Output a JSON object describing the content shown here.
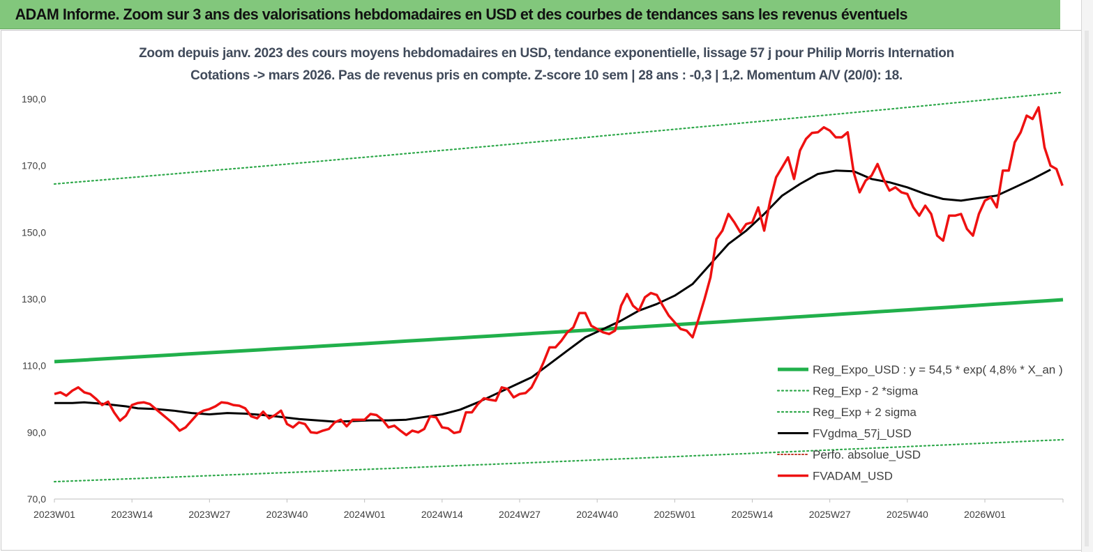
{
  "banner": {
    "title": "ADAM Informe. Zoom sur 3 ans des valorisations hebdomadaires en USD et des courbes de tendances sans les revenus éventuels"
  },
  "chart_data": {
    "type": "line",
    "title_line1": "Zoom depuis janv. 2023 des cours moyens hebdomadaires en USD, tendance exponentielle, lissage 57 j pour Philip Morris Internation",
    "title_line2": "Cotations -> mars 2026. Pas de revenus pris en compte. Z-score 10 sem | 28 ans : -0,3 | 1,2. Momentum A/V (20/0): 18.",
    "ylim": [
      70,
      190
    ],
    "yticks": [
      "70,0",
      "90,0",
      "110,0",
      "130,0",
      "150,0",
      "170,0",
      "190,0"
    ],
    "ytick_values": [
      70,
      90,
      110,
      130,
      150,
      170,
      190
    ],
    "xticks": [
      "2023W01",
      "2023W14",
      "2023W27",
      "2023W40",
      "2024W01",
      "2024W14",
      "2024W27",
      "2024W40",
      "2025W01",
      "2025W14",
      "2025W27",
      "2025W40",
      "2026W01"
    ],
    "xtick_index": [
      0,
      13,
      26,
      39,
      52,
      65,
      78,
      91,
      104,
      117,
      130,
      143,
      156
    ],
    "n_weeks": 170,
    "grid": "none",
    "legend_position": "bottom-right",
    "colors": {
      "green": "#21b04b",
      "green_dotted": "#2ea84a",
      "black": "#000000",
      "red": "#ee1111",
      "red_dotted": "#c0392b"
    },
    "legend": [
      {
        "label": "Reg_Expo_USD : y = 54,5 * exp( 4,8% *  X_an )",
        "style": "green-solid"
      },
      {
        "label": "Reg_Exp - 2 *sigma",
        "style": "green-dotted"
      },
      {
        "label": "Reg_Exp + 2 sigma",
        "style": "green-dotted"
      },
      {
        "label": "FVgdma_57j_USD",
        "style": "black-solid"
      },
      {
        "label": "Perfo. absolue_USD",
        "style": "red-dotted"
      },
      {
        "label": "FVADAM_USD",
        "style": "red-solid"
      }
    ],
    "series": [
      {
        "name": "Reg_Expo_USD : y = 54,5 * exp( 4,8% *  X_an )",
        "start": 111.2,
        "end": 129.8
      },
      {
        "name": "Reg_Exp - 2 *sigma",
        "start": 75.2,
        "end": 87.8
      },
      {
        "name": "Reg_Exp + 2 sigma",
        "start": 164.5,
        "end": 192.0
      },
      {
        "name": "FVgdma_57j_USD",
        "points": [
          [
            0,
            98.8
          ],
          [
            3,
            98.8
          ],
          [
            5,
            99.0
          ],
          [
            8,
            98.6
          ],
          [
            10,
            98.2
          ],
          [
            12,
            97.8
          ],
          [
            14,
            97.2
          ],
          [
            17,
            97.0
          ],
          [
            20,
            96.5
          ],
          [
            23,
            95.8
          ],
          [
            26,
            95.4
          ],
          [
            29,
            95.8
          ],
          [
            32,
            95.6
          ],
          [
            35,
            95.2
          ],
          [
            38,
            94.6
          ],
          [
            41,
            94.0
          ],
          [
            44,
            93.6
          ],
          [
            47,
            93.2
          ],
          [
            50,
            93.4
          ],
          [
            53,
            93.6
          ],
          [
            56,
            93.6
          ],
          [
            59,
            93.8
          ],
          [
            62,
            94.6
          ],
          [
            65,
            95.4
          ],
          [
            68,
            96.8
          ],
          [
            71,
            99.0
          ],
          [
            74,
            101.5
          ],
          [
            77,
            104.0
          ],
          [
            80,
            106.5
          ],
          [
            83,
            110.5
          ],
          [
            86,
            114.5
          ],
          [
            89,
            118.5
          ],
          [
            92,
            121.0
          ],
          [
            95,
            123.5
          ],
          [
            98,
            126.5
          ],
          [
            101,
            128.5
          ],
          [
            104,
            131.0
          ],
          [
            107,
            134.5
          ],
          [
            110,
            140.5
          ],
          [
            113,
            146.5
          ],
          [
            116,
            150.5
          ],
          [
            119,
            155.5
          ],
          [
            122,
            161.0
          ],
          [
            125,
            164.5
          ],
          [
            128,
            167.5
          ],
          [
            131,
            168.5
          ],
          [
            134,
            168.3
          ],
          [
            137,
            166.0
          ],
          [
            140,
            165.0
          ],
          [
            143,
            163.5
          ],
          [
            146,
            161.5
          ],
          [
            149,
            160.0
          ],
          [
            152,
            159.5
          ],
          [
            155,
            160.3
          ],
          [
            158,
            161.0
          ],
          [
            161,
            163.5
          ],
          [
            164,
            166.0
          ],
          [
            167,
            168.8
          ],
          [
            170,
            169.6
          ],
          [
            172,
            168.8
          ],
          [
            175,
            167.8
          ],
          [
            178,
            166.8
          ]
        ]
      },
      {
        "name": "FVADAM_USD",
        "points": [
          [
            0,
            101.5
          ],
          [
            1,
            102.0
          ],
          [
            2,
            101.0
          ],
          [
            3,
            102.5
          ],
          [
            4,
            103.5
          ],
          [
            5,
            102.0
          ],
          [
            6,
            101.5
          ],
          [
            7,
            100.0
          ],
          [
            8,
            98.2
          ],
          [
            9,
            99.2
          ],
          [
            10,
            96.0
          ],
          [
            11,
            93.5
          ],
          [
            12,
            95.0
          ],
          [
            13,
            98.2
          ],
          [
            14,
            98.8
          ],
          [
            15,
            99.0
          ],
          [
            16,
            98.5
          ],
          [
            17,
            97.0
          ],
          [
            18,
            95.5
          ],
          [
            19,
            94.0
          ],
          [
            20,
            92.5
          ],
          [
            21,
            90.5
          ],
          [
            22,
            91.5
          ],
          [
            23,
            93.5
          ],
          [
            24,
            95.5
          ],
          [
            25,
            96.5
          ],
          [
            26,
            97.0
          ],
          [
            27,
            97.8
          ],
          [
            28,
            99.0
          ],
          [
            29,
            98.8
          ],
          [
            30,
            98.2
          ],
          [
            31,
            98.0
          ],
          [
            32,
            97.2
          ],
          [
            33,
            94.8
          ],
          [
            34,
            94.2
          ],
          [
            35,
            96.2
          ],
          [
            36,
            94.2
          ],
          [
            37,
            95.2
          ],
          [
            38,
            96.5
          ],
          [
            39,
            92.5
          ],
          [
            40,
            91.5
          ],
          [
            41,
            93.0
          ],
          [
            42,
            92.5
          ],
          [
            43,
            90.0
          ],
          [
            44,
            89.8
          ],
          [
            45,
            90.5
          ],
          [
            46,
            91.0
          ],
          [
            47,
            93.0
          ],
          [
            48,
            93.8
          ],
          [
            49,
            91.8
          ],
          [
            50,
            93.8
          ],
          [
            51,
            93.8
          ],
          [
            52,
            93.8
          ],
          [
            53,
            95.5
          ],
          [
            54,
            95.2
          ],
          [
            55,
            93.8
          ],
          [
            56,
            91.5
          ],
          [
            57,
            92.0
          ],
          [
            58,
            90.5
          ],
          [
            59,
            89.2
          ],
          [
            60,
            90.5
          ],
          [
            61,
            90.0
          ],
          [
            62,
            91.0
          ],
          [
            63,
            94.8
          ],
          [
            64,
            94.5
          ],
          [
            65,
            91.5
          ],
          [
            66,
            91.2
          ],
          [
            67,
            89.8
          ],
          [
            68,
            90.2
          ],
          [
            69,
            96.0
          ],
          [
            70,
            96.0
          ],
          [
            71,
            98.5
          ],
          [
            72,
            100.2
          ],
          [
            73,
            99.8
          ],
          [
            74,
            99.5
          ],
          [
            75,
            103.5
          ],
          [
            76,
            103.0
          ],
          [
            77,
            100.5
          ],
          [
            78,
            101.5
          ],
          [
            79,
            101.8
          ],
          [
            80,
            103.5
          ],
          [
            81,
            107.0
          ],
          [
            82,
            111.0
          ],
          [
            83,
            115.5
          ],
          [
            84,
            115.5
          ],
          [
            85,
            117.5
          ],
          [
            86,
            120.0
          ],
          [
            87,
            121.5
          ],
          [
            88,
            125.8
          ],
          [
            89,
            125.8
          ],
          [
            90,
            122.0
          ],
          [
            91,
            121.0
          ],
          [
            92,
            120.0
          ],
          [
            93,
            119.5
          ],
          [
            94,
            120.5
          ],
          [
            95,
            128.0
          ],
          [
            96,
            131.5
          ],
          [
            97,
            128.0
          ],
          [
            98,
            126.5
          ],
          [
            99,
            130.5
          ],
          [
            100,
            131.8
          ],
          [
            101,
            131.2
          ],
          [
            102,
            128.0
          ],
          [
            103,
            125.0
          ],
          [
            104,
            123.0
          ],
          [
            105,
            121.0
          ],
          [
            106,
            120.5
          ],
          [
            107,
            118.5
          ],
          [
            108,
            124.0
          ],
          [
            109,
            130.0
          ],
          [
            110,
            136.5
          ],
          [
            111,
            148.0
          ],
          [
            112,
            150.5
          ],
          [
            113,
            155.5
          ],
          [
            114,
            153.0
          ],
          [
            115,
            150.0
          ],
          [
            116,
            152.5
          ],
          [
            117,
            153.0
          ],
          [
            118,
            157.5
          ],
          [
            119,
            150.5
          ],
          [
            120,
            159.5
          ],
          [
            121,
            166.5
          ],
          [
            122,
            169.5
          ],
          [
            123,
            172.5
          ],
          [
            124,
            166.0
          ],
          [
            125,
            174.5
          ],
          [
            126,
            178.0
          ],
          [
            127,
            179.8
          ],
          [
            128,
            180.0
          ],
          [
            129,
            181.5
          ],
          [
            130,
            180.5
          ],
          [
            131,
            178.5
          ],
          [
            132,
            178.5
          ],
          [
            133,
            180.0
          ],
          [
            134,
            168.0
          ],
          [
            135,
            162.0
          ],
          [
            136,
            165.5
          ],
          [
            137,
            167.0
          ],
          [
            138,
            170.5
          ],
          [
            139,
            166.0
          ],
          [
            140,
            162.5
          ],
          [
            141,
            163.5
          ],
          [
            142,
            162.0
          ],
          [
            143,
            161.5
          ],
          [
            144,
            157.5
          ],
          [
            145,
            155.0
          ],
          [
            146,
            158.0
          ],
          [
            147,
            155.5
          ],
          [
            148,
            149.0
          ],
          [
            149,
            147.5
          ],
          [
            150,
            155.0
          ],
          [
            151,
            155.0
          ],
          [
            152,
            155.5
          ],
          [
            153,
            151.0
          ],
          [
            154,
            149.0
          ],
          [
            155,
            155.5
          ],
          [
            156,
            159.5
          ],
          [
            157,
            160.5
          ],
          [
            158,
            157.5
          ],
          [
            159,
            168.5
          ],
          [
            160,
            168.5
          ],
          [
            161,
            177.0
          ],
          [
            162,
            180.0
          ],
          [
            163,
            185.0
          ],
          [
            164,
            184.0
          ],
          [
            165,
            187.5
          ],
          [
            166,
            175.5
          ],
          [
            167,
            170.0
          ],
          [
            168,
            169.0
          ],
          [
            169,
            164.0
          ]
        ]
      }
    ]
  }
}
